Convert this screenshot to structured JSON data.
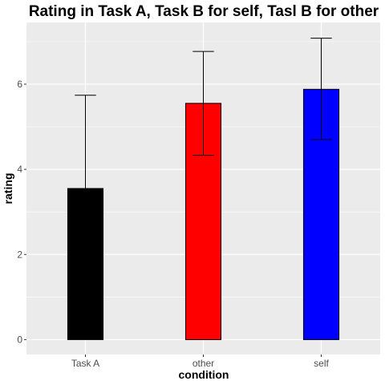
{
  "chart_data": {
    "type": "bar",
    "title": "Rating in Task A, Task B for self, Tasl B for other",
    "xlabel": "condition",
    "ylabel": "rating",
    "categories": [
      "Task A",
      "other",
      "self"
    ],
    "values": [
      3.55,
      5.55,
      5.88
    ],
    "error_bars": [
      {
        "low": 1.35,
        "high": 5.74
      },
      {
        "low": 4.33,
        "high": 6.77
      },
      {
        "low": 4.7,
        "high": 7.08
      }
    ],
    "bar_colors": [
      "#000000",
      "#ff0000",
      "#0000ff"
    ],
    "yticks": [
      0,
      2,
      4,
      6
    ],
    "ylim": [
      -0.35,
      7.45
    ],
    "grid": true,
    "legend": "none"
  }
}
